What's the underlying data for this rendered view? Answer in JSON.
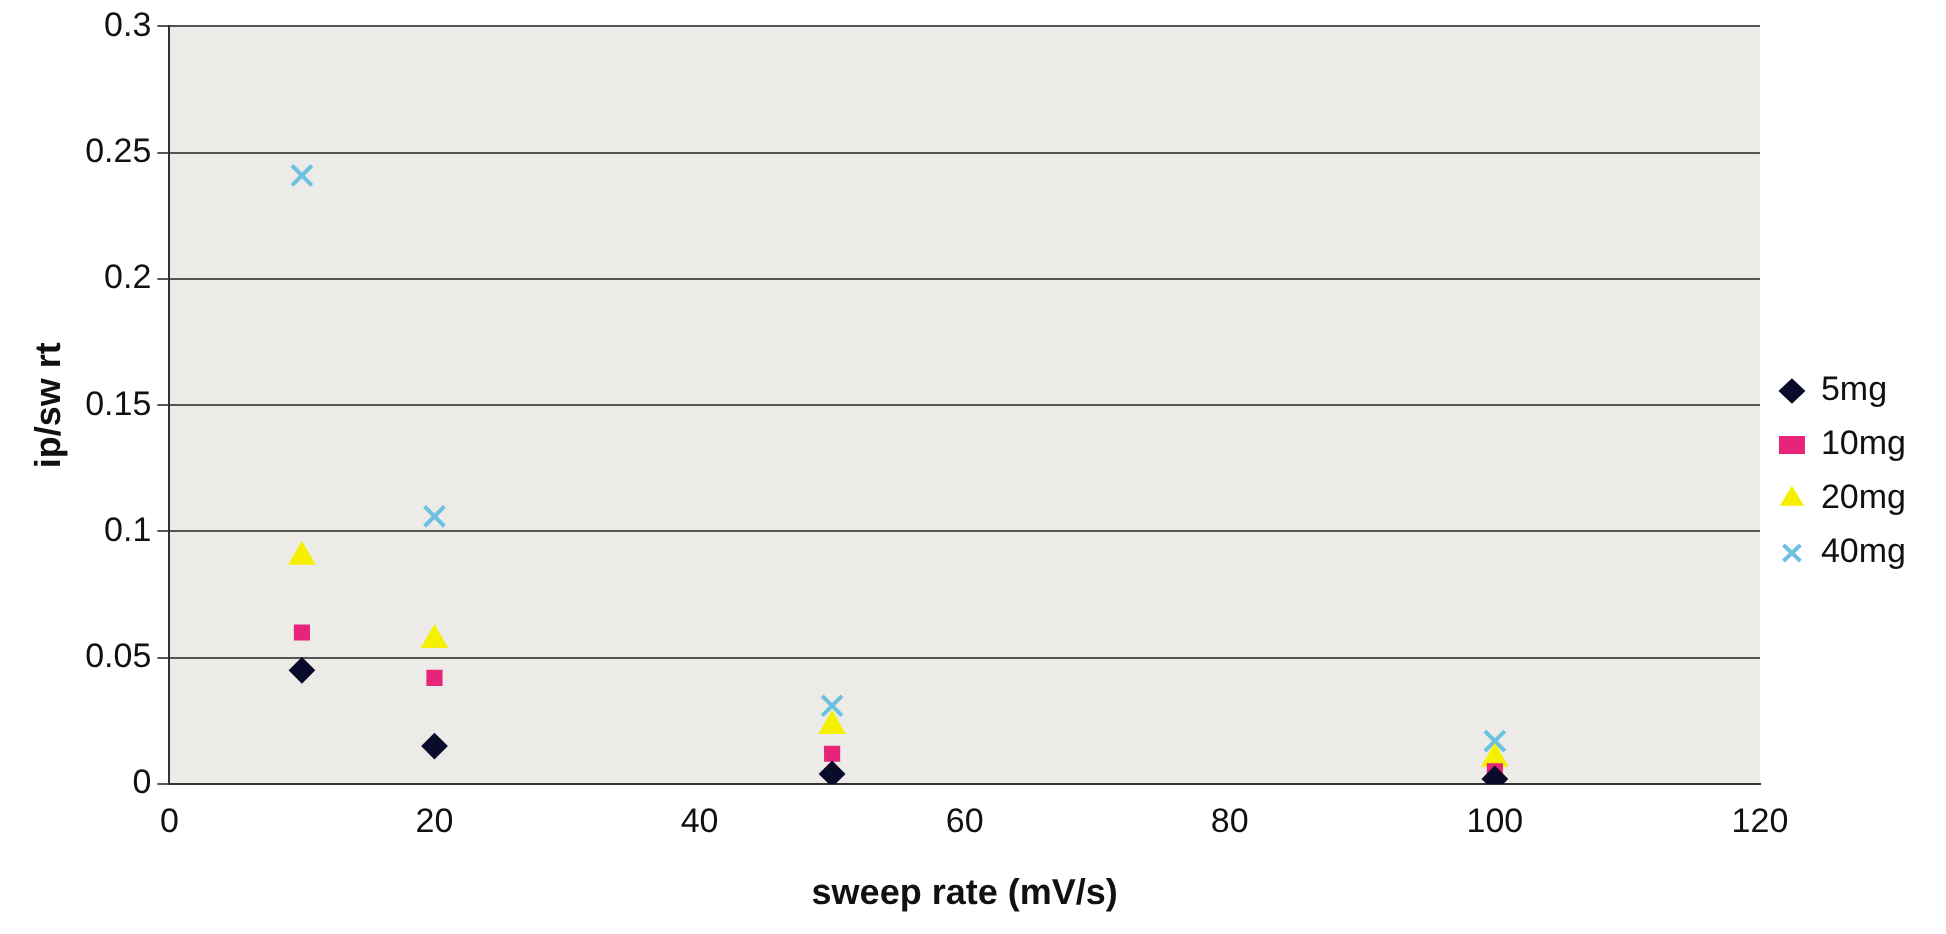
{
  "chart_data": {
    "type": "scatter",
    "xlabel": "sweep rate (mV/s)",
    "ylabel": "ip/sw rt",
    "xlim": [
      0,
      120
    ],
    "xticks": [
      0,
      20,
      40,
      60,
      80,
      100,
      120
    ],
    "ylim": [
      0,
      0.3
    ],
    "yticks": [
      0,
      0.05,
      0.1,
      0.15,
      0.2,
      0.25,
      0.3
    ],
    "grid": "y",
    "legend": "right",
    "x": [
      10,
      20,
      50,
      100
    ],
    "series": [
      {
        "name": "5mg",
        "color": "#0a0a2a",
        "marker": "diamond",
        "values": [
          0.045,
          0.015,
          0.004,
          0.002
        ]
      },
      {
        "name": "10mg",
        "color": "#e8247a",
        "marker": "square",
        "values": [
          0.06,
          0.042,
          0.012,
          0.005
        ]
      },
      {
        "name": "20mg",
        "color": "#f5f000",
        "marker": "triangle",
        "values": [
          0.09,
          0.057,
          0.023,
          0.01
        ]
      },
      {
        "name": "40mg",
        "color": "#6cc0e0",
        "marker": "cross",
        "values": [
          0.241,
          0.106,
          0.031,
          0.017
        ]
      }
    ]
  }
}
